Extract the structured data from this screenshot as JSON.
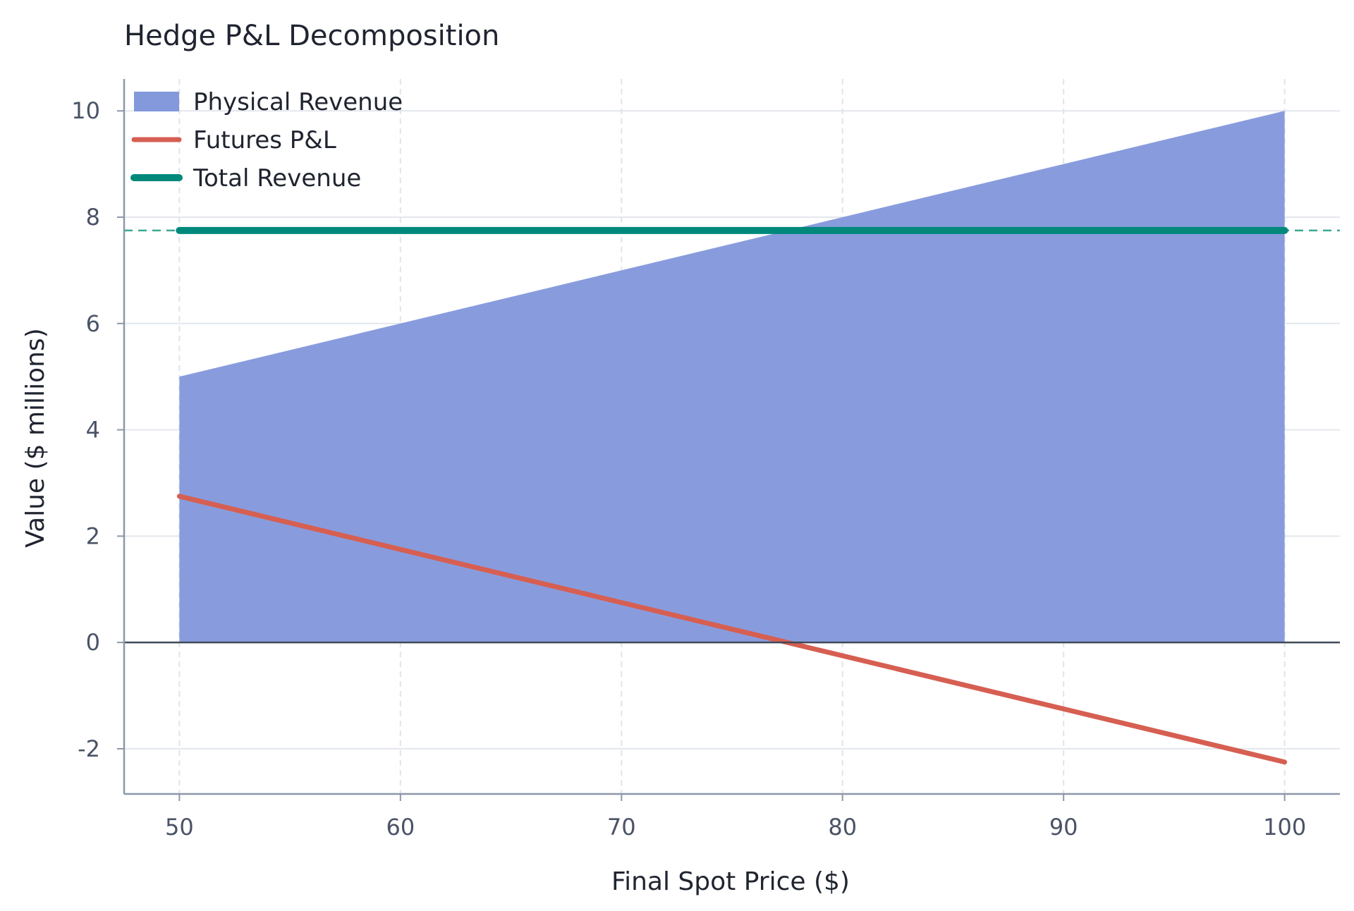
{
  "chart_data": {
    "type": "area",
    "title": "Hedge P&L Decomposition",
    "xlabel": "Final Spot Price ($)",
    "ylabel": "Value ($ millions)",
    "xlim": [
      47.5,
      102.5
    ],
    "ylim": [
      -2.85,
      10.6
    ],
    "x_ticks": [
      50,
      60,
      70,
      80,
      90,
      100
    ],
    "y_ticks": [
      -2,
      0,
      2,
      4,
      6,
      8,
      10
    ],
    "x_tick_labels": [
      "50",
      "60",
      "70",
      "80",
      "90",
      "100"
    ],
    "y_tick_labels": [
      "-2",
      "0",
      "2",
      "4",
      "6",
      "8",
      "10"
    ],
    "grid": true,
    "zero_line": 0,
    "reference_line": 7.75,
    "legend_position": "top-left",
    "x": [
      50,
      100
    ],
    "series": [
      {
        "name": "Physical Revenue",
        "type": "area",
        "values": [
          5.0,
          10.0
        ],
        "color": "#8499dc"
      },
      {
        "name": "Futures P&L",
        "type": "line",
        "values": [
          2.75,
          -2.25
        ],
        "color": "#d65f52"
      },
      {
        "name": "Total Revenue",
        "type": "line",
        "values": [
          7.75,
          7.75
        ],
        "color": "#00897b"
      }
    ]
  }
}
